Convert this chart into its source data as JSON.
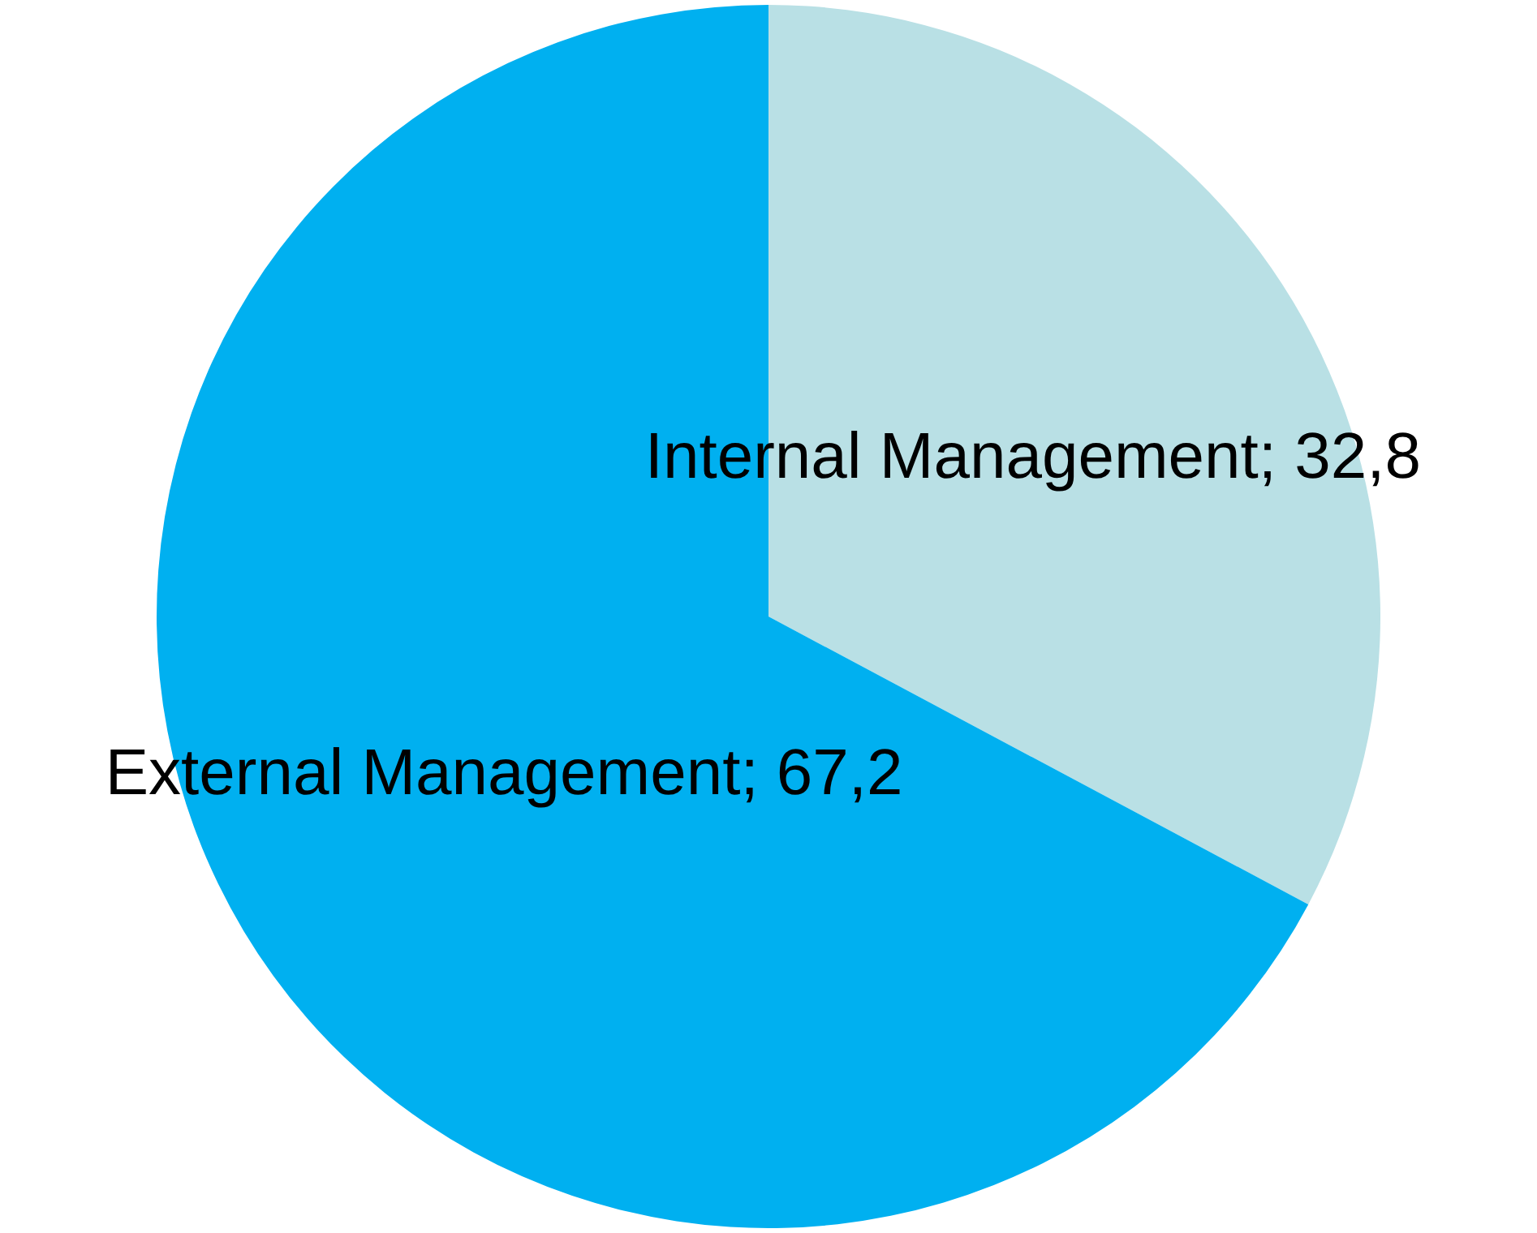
{
  "chart_data": {
    "type": "pie",
    "categories": [
      "Internal Management",
      "External Management"
    ],
    "values": [
      32.8,
      67.2
    ],
    "colors": [
      "#b9e0e5",
      "#00b0f0"
    ],
    "value_labels": [
      "32,8",
      "67,2"
    ]
  }
}
